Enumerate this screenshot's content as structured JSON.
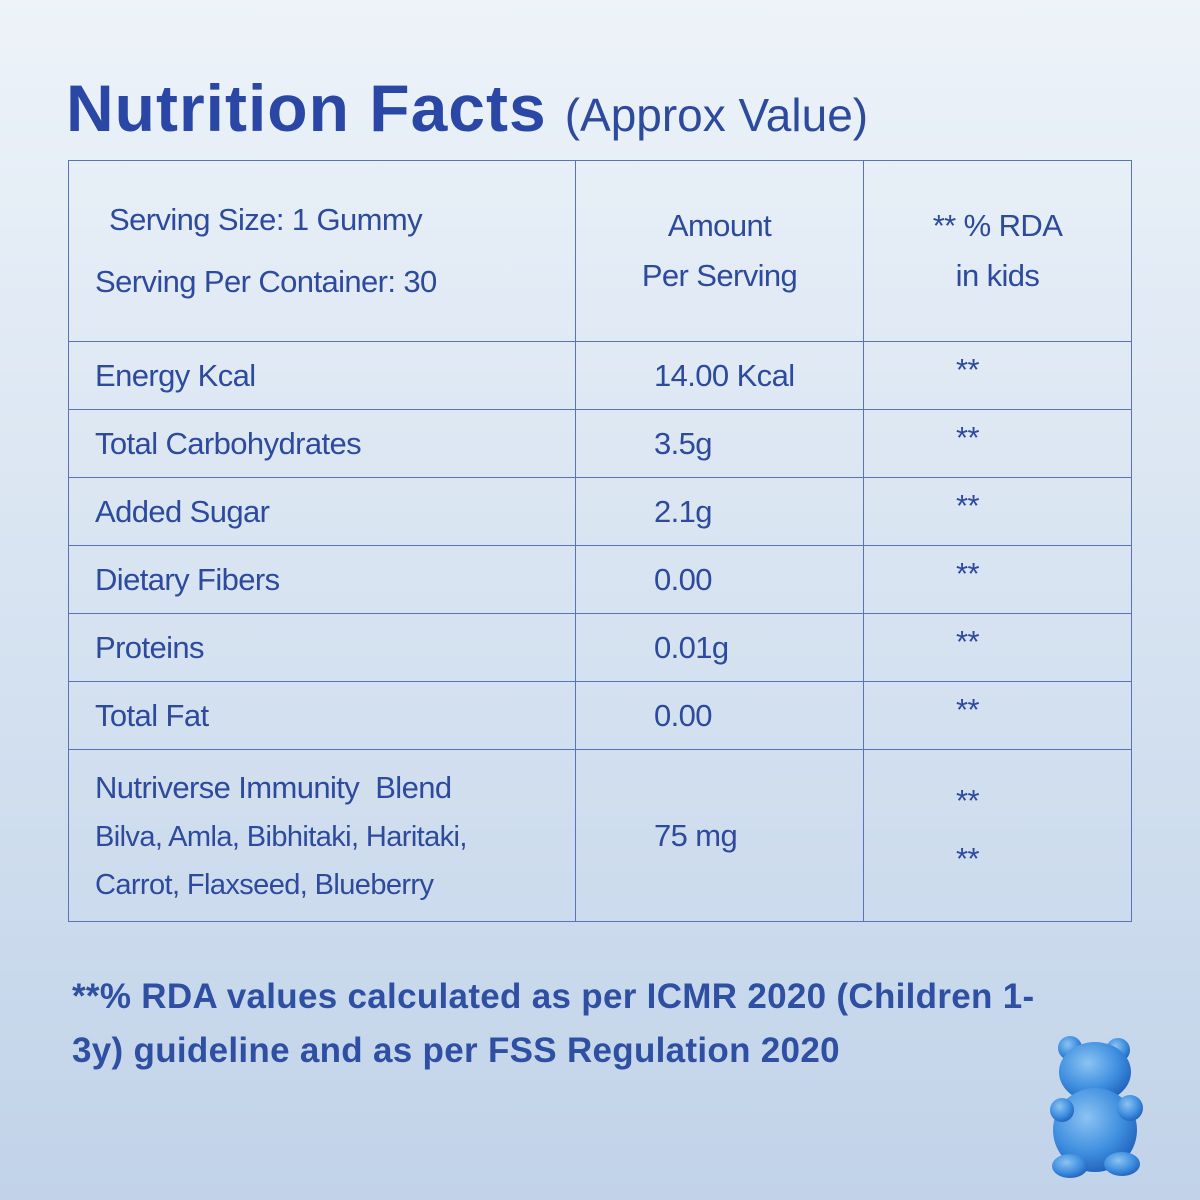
{
  "header": {
    "title": "Nutrition Facts",
    "subtitle": "(Approx Value)"
  },
  "table": {
    "head": {
      "serving": [
        "Serving Size: 1 Gummy",
        "Serving Per Container: 30"
      ],
      "amount": [
        "Amount",
        "Per Serving"
      ],
      "rda": [
        "** % RDA",
        "in kids"
      ]
    },
    "rows": [
      {
        "name": "Energy Kcal",
        "amount": "14.00 Kcal",
        "rda": [
          "**"
        ]
      },
      {
        "name": "Total Carbohydrates",
        "amount": "3.5g",
        "rda": [
          "**"
        ]
      },
      {
        "name": "Added Sugar",
        "amount": "2.1g",
        "rda": [
          "**"
        ]
      },
      {
        "name": "Dietary Fibers",
        "amount": "0.00",
        "rda": [
          "**"
        ]
      },
      {
        "name": "Proteins",
        "amount": "0.01g",
        "rda": [
          "**"
        ]
      },
      {
        "name": "Total Fat",
        "amount": "0.00",
        "rda": [
          "**"
        ]
      },
      {
        "name": "Nutriverse Immunity  Blend",
        "ingredients": [
          "Bilva, Amla, Bibhitaki, Haritaki,",
          "Carrot, Flaxseed, Blueberry"
        ],
        "amount": "75 mg",
        "rda": [
          "**",
          "**"
        ]
      }
    ]
  },
  "footnote": [
    "**% RDA values calculated as per ICMR 2020 (Children 1-",
    "3y) guideline and as per FSS Regulation 2020"
  ]
}
